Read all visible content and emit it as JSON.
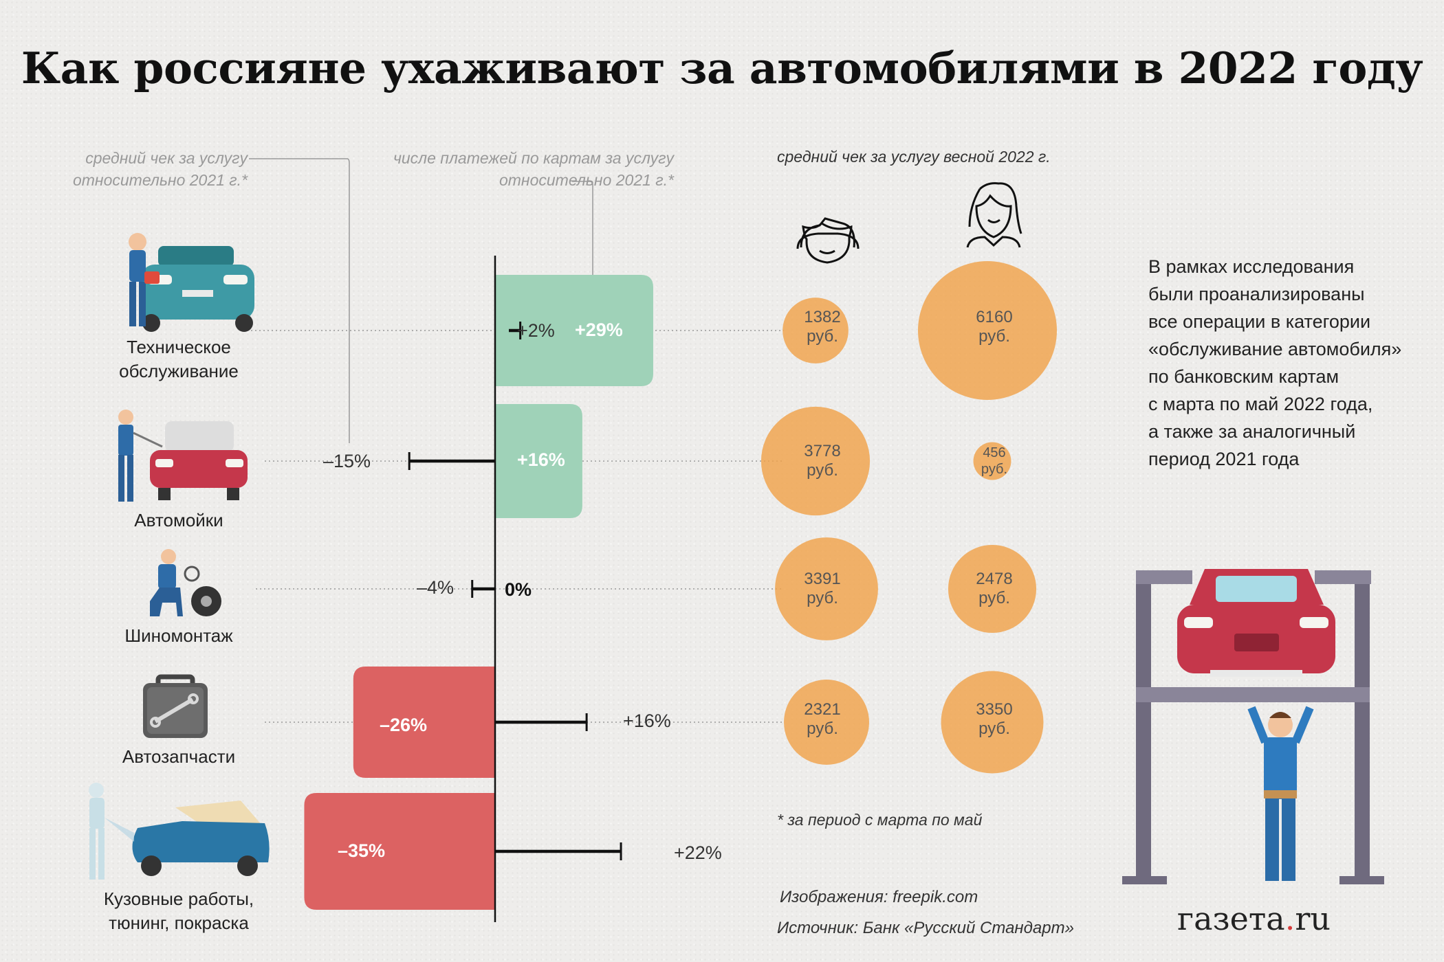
{
  "title": "Как россияне ухаживают за автомобилями в 2022 году",
  "notes": {
    "avg_check_change": [
      "средний чек за услугу",
      "относительно 2021 г.*"
    ],
    "payments_change": [
      "числе платежей по картам за услугу",
      "относительно 2021 г.*"
    ],
    "avg_check_spring": "средний чек за услугу весной 2022 г.",
    "footnote": "* за период с марта по май"
  },
  "icons": {
    "men": "man-face-icon",
    "women": "woman-face-icon"
  },
  "colors": {
    "positive": "#9fd2b8",
    "negative": "#dc6262",
    "bubble": "#f0a24a",
    "axis": "#111111"
  },
  "chart_data": {
    "type": "bar",
    "title": "Как россияне ухаживают за автомобилями в 2022 году",
    "categories": [
      [
        "Техническое",
        "обслуживание"
      ],
      [
        "Автомойки"
      ],
      [
        "Шиномонтаж"
      ],
      [
        "Автозапчасти"
      ],
      [
        "Кузовные работы,",
        "тюнинг, покраска"
      ]
    ],
    "category_names": [
      "Техническое обслуживание",
      "Автомойки",
      "Шиномонтаж",
      "Автозапчасти",
      "Кузовные работы, тюнинг, покраска"
    ],
    "series": [
      {
        "name": "числе платежей по картам за услугу относительно 2021 г.*",
        "unit": "%",
        "values": [
          29,
          16,
          0,
          -26,
          -35
        ],
        "labels": [
          "+29%",
          "+16%",
          "0%",
          "–26%",
          "–35%"
        ]
      },
      {
        "name": "средний чек за услугу относительно 2021 г.*",
        "unit": "%",
        "values": [
          2,
          -15,
          -4,
          16,
          22
        ],
        "labels": [
          "+2%",
          "–15%",
          "–4%",
          "+16%",
          "+22%"
        ]
      }
    ],
    "bubbles": {
      "title": "средний чек за услугу весной 2022 г.",
      "unit": "руб.",
      "series": [
        {
          "name": "мужчины",
          "values": [
            1382,
            3778,
            3391,
            2321
          ]
        },
        {
          "name": "женщины",
          "values": [
            6160,
            456,
            2478,
            3350
          ]
        }
      ]
    }
  },
  "side_text": [
    "В рамках исследования",
    "были проанализированы",
    "все операции в категории",
    "«обслуживание автомобиля»",
    "по банковским картам",
    "с марта по май 2022 года,",
    "а также за аналогичный",
    "период 2021 года"
  ],
  "credits": {
    "images": "Изображения: freepik.com",
    "source": "Источник: Банк «Русский Стандарт»"
  },
  "logo": {
    "main": "газета",
    "dot": ".",
    "tld": "ru"
  }
}
